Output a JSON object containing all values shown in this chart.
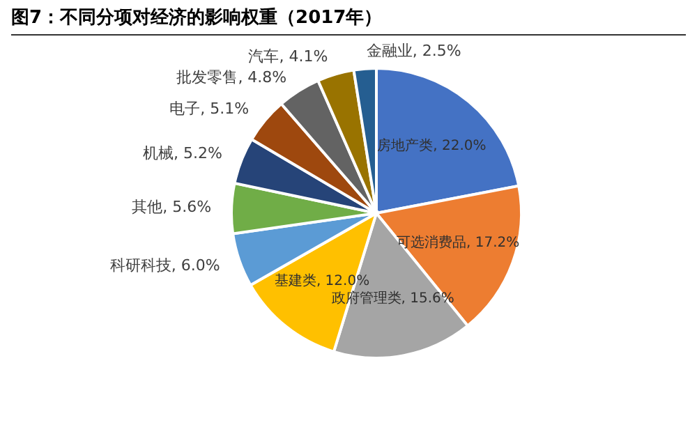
{
  "chart_data": {
    "type": "pie",
    "title": "图7：不同分项对经济的影响权重（2017年）",
    "categories": [
      "房地产类",
      "可选消费品",
      "政府管理类",
      "基建类",
      "科研科技",
      "其他",
      "机械",
      "电子",
      "批发零售",
      "汽车",
      "金融业"
    ],
    "values": [
      22.0,
      17.2,
      15.6,
      12.0,
      6.0,
      5.6,
      5.2,
      5.1,
      4.8,
      4.1,
      2.5
    ],
    "value_labels": [
      "22.0%",
      "17.2%",
      "15.6%",
      "12.0%",
      "6.0%",
      "5.6%",
      "5.2%",
      "5.1%",
      "4.8%",
      "4.1%",
      "2.5%"
    ],
    "colors": [
      "#4472c4",
      "#ed7d31",
      "#a5a5a5",
      "#ffc000",
      "#5b9bd5",
      "#70ad47",
      "#264478",
      "#9e480e",
      "#636363",
      "#997300",
      "#255e91"
    ]
  }
}
